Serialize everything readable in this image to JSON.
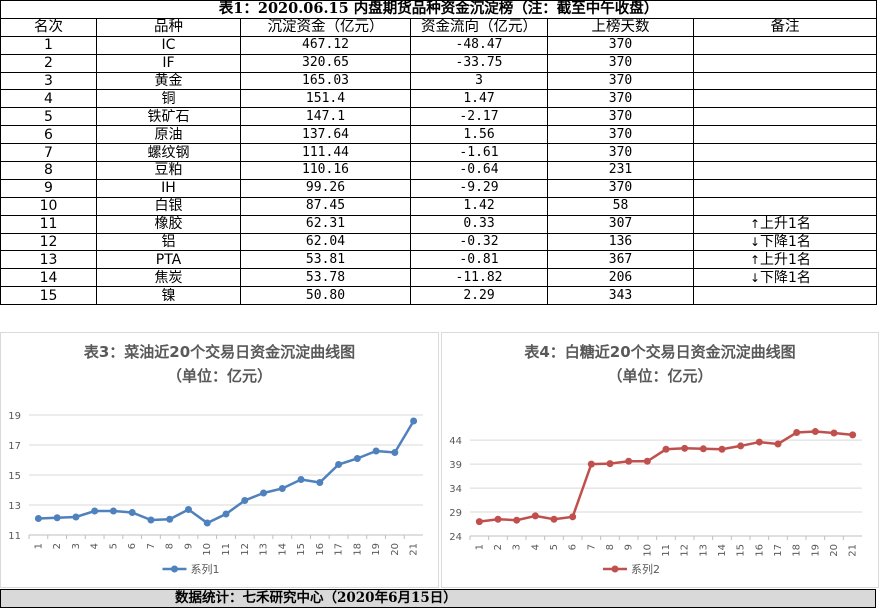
{
  "table": {
    "title": "表1：2020.06.15 内盘期货品种资金沉淀榜（注：截至中午收盘）",
    "headers": [
      "名次",
      "品种",
      "沉淀资金（亿元）",
      "资金流向（亿元）",
      "上榜天数",
      "备注"
    ],
    "rows": [
      {
        "rank": "1",
        "name": "IC",
        "fund": "467.12",
        "flow": "-48.47",
        "days": "370",
        "note": "",
        "arrow": ""
      },
      {
        "rank": "2",
        "name": "IF",
        "fund": "320.65",
        "flow": "-33.75",
        "days": "370",
        "note": "",
        "arrow": ""
      },
      {
        "rank": "3",
        "name": "黄金",
        "fund": "165.03",
        "flow": "3",
        "days": "370",
        "note": "",
        "arrow": ""
      },
      {
        "rank": "4",
        "name": "铜",
        "fund": "151.4",
        "flow": "1.47",
        "days": "370",
        "note": "",
        "arrow": ""
      },
      {
        "rank": "5",
        "name": "铁矿石",
        "fund": "147.1",
        "flow": "-2.17",
        "days": "370",
        "note": "",
        "arrow": ""
      },
      {
        "rank": "6",
        "name": "原油",
        "fund": "137.64",
        "flow": "1.56",
        "days": "370",
        "note": "",
        "arrow": ""
      },
      {
        "rank": "7",
        "name": "螺纹钢",
        "fund": "111.44",
        "flow": "-1.61",
        "days": "370",
        "note": "",
        "arrow": ""
      },
      {
        "rank": "8",
        "name": "豆粕",
        "fund": "110.16",
        "flow": "-0.64",
        "days": "231",
        "note": "",
        "arrow": ""
      },
      {
        "rank": "9",
        "name": "IH",
        "fund": "99.26",
        "flow": "-9.29",
        "days": "370",
        "note": "",
        "arrow": ""
      },
      {
        "rank": "10",
        "name": "白银",
        "fund": "87.45",
        "flow": "1.42",
        "days": "58",
        "note": "",
        "arrow": ""
      },
      {
        "rank": "11",
        "name": "橡胶",
        "fund": "62.31",
        "flow": "0.33",
        "days": "307",
        "note": "上升1名",
        "arrow": "↑"
      },
      {
        "rank": "12",
        "name": "铝",
        "fund": "62.04",
        "flow": "-0.32",
        "days": "136",
        "note": "下降1名",
        "arrow": "↓"
      },
      {
        "rank": "13",
        "name": "PTA",
        "fund": "53.81",
        "flow": "-0.81",
        "days": "367",
        "note": "上升1名",
        "arrow": "↑"
      },
      {
        "rank": "14",
        "name": "焦炭",
        "fund": "53.78",
        "flow": "-11.82",
        "days": "206",
        "note": "下降1名",
        "arrow": "↓"
      },
      {
        "rank": "15",
        "name": "镍",
        "fund": "50.80",
        "flow": "2.29",
        "days": "343",
        "note": "",
        "arrow": ""
      }
    ]
  },
  "chart_data": [
    {
      "type": "line",
      "title": "表3：菜油近20个交易日资金沉淀曲线图",
      "subtitle": "（单位：亿元）",
      "x": [
        "1",
        "2",
        "3",
        "4",
        "5",
        "6",
        "7",
        "8",
        "9",
        "10",
        "11",
        "12",
        "13",
        "14",
        "15",
        "16",
        "17",
        "18",
        "19",
        "20",
        "21"
      ],
      "series": [
        {
          "name": "系列1",
          "values": [
            12.1,
            12.15,
            12.2,
            12.6,
            12.6,
            12.5,
            12.0,
            12.05,
            12.7,
            11.8,
            12.4,
            13.3,
            13.8,
            14.1,
            14.7,
            14.5,
            15.7,
            16.1,
            16.6,
            16.5,
            18.6
          ]
        }
      ],
      "ylim": [
        11,
        19
      ],
      "yticks": [
        11,
        13,
        15,
        17,
        19
      ],
      "color": "#4f81bd",
      "legend": "bottom"
    },
    {
      "type": "line",
      "title": "表4：白糖近20个交易日资金沉淀曲线图",
      "subtitle": "（单位：亿元）",
      "x": [
        "1",
        "2",
        "3",
        "4",
        "5",
        "6",
        "7",
        "8",
        "9",
        "10",
        "11",
        "12",
        "13",
        "14",
        "15",
        "16",
        "17",
        "18",
        "19",
        "20",
        "21"
      ],
      "series": [
        {
          "name": "系列2",
          "values": [
            27.0,
            27.5,
            27.3,
            28.2,
            27.5,
            28.0,
            39.0,
            39.1,
            39.6,
            39.6,
            42.1,
            42.3,
            42.2,
            42.1,
            42.8,
            43.6,
            43.2,
            45.6,
            45.8,
            45.5,
            45.1
          ]
        }
      ],
      "ylim": [
        24,
        48
      ],
      "yticks": [
        24,
        29,
        34,
        39,
        44
      ],
      "color": "#c0504d",
      "legend": "bottom"
    }
  ],
  "footer": "数据统计：七禾研究中心（2020年6月15日）"
}
